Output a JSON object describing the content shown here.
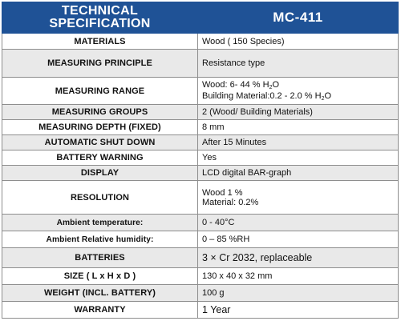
{
  "header": {
    "left_line1": "TECHNICAL",
    "left_line2": "SPECIFICATION",
    "right": "MC-411"
  },
  "rows": [
    {
      "label": "MATERIALS",
      "value": "Wood ( 150 Species)"
    },
    {
      "label": "MEASURING PRINCIPLE",
      "value": "Resistance type"
    },
    {
      "label": "MEASURING RANGE",
      "value_line1_pre": "Wood:  6- 44 % H",
      "value_line1_sub": "2",
      "value_line1_post": "O",
      "value_line2_pre": "Building Material:0.2 - 2.0 % H",
      "value_line2_sub": "2",
      "value_line2_post": "O"
    },
    {
      "label": "MEASURING GROUPS",
      "value": "2 (Wood/ Building Materials)"
    },
    {
      "label": "MEASURING  DEPTH (FIXED)",
      "value": "8 mm"
    },
    {
      "label": "AUTOMATIC SHUT DOWN",
      "value": "After 15 Minutes"
    },
    {
      "label": "BATTERY WARNING",
      "value": "Yes"
    },
    {
      "label": "DISPLAY",
      "value": "LCD digital BAR-graph"
    },
    {
      "label": "RESOLUTION",
      "value_line1": "Wood 1 %",
      "value_line2": "Material: 0.2%"
    },
    {
      "label": "Ambient temperature:",
      "value": "0 - 40°C"
    },
    {
      "label": "Ambient Relative humidity:",
      "value": "0 – 85 %RH"
    },
    {
      "label": "BATTERIES",
      "value": "3 ×  Cr 2032, replaceable"
    },
    {
      "label": "SIZE  ( L x H x D )",
      "value": "130 x 40 x 32 mm"
    },
    {
      "label": "WEIGHT (INCL. BATTERY)",
      "value": "100 g"
    },
    {
      "label": "WARRANTY",
      "value": "1 Year"
    }
  ]
}
